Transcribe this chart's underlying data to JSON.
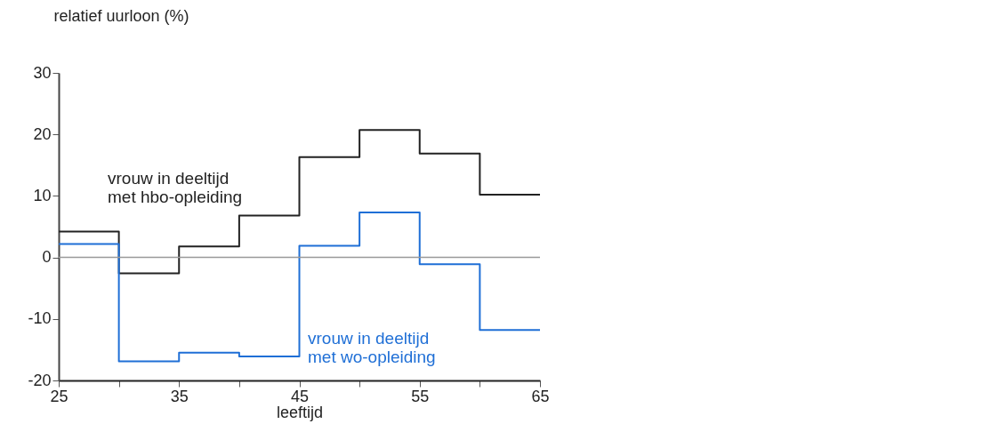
{
  "chart_data": {
    "type": "step",
    "xlabel": "leeftijd",
    "ylabel": "relatief uurloon (%)",
    "x": [
      25,
      30,
      35,
      40,
      45,
      50,
      55,
      60,
      65
    ],
    "series": [
      {
        "name": "vrouw in deeltijd\nmet hbo-opleiding",
        "color": "#222222",
        "values": [
          4.2,
          -2.6,
          1.8,
          6.8,
          16.3,
          20.7,
          16.9,
          10.2,
          10.2
        ]
      },
      {
        "name": "vrouw in deeltijd\nmet wo-opleiding",
        "color": "#1f6fd6",
        "values": [
          2.2,
          -16.9,
          -15.5,
          -16.1,
          1.9,
          7.3,
          -1.1,
          -11.8,
          -11.8
        ]
      }
    ],
    "xlim": [
      25,
      65
    ],
    "ylim": [
      -20,
      30
    ],
    "xticks": [
      25,
      {
        "value": 30,
        "label": null
      },
      35,
      {
        "value": 40,
        "label": null
      },
      45,
      {
        "value": 50,
        "label": null
      },
      55,
      {
        "value": 60,
        "label": null
      },
      65
    ],
    "yticks": [
      -20,
      -10,
      0,
      10,
      20,
      30
    ],
    "ref_lines": [
      {
        "axis": "y",
        "value": 0,
        "color": "#999999"
      }
    ],
    "grid": false
  }
}
